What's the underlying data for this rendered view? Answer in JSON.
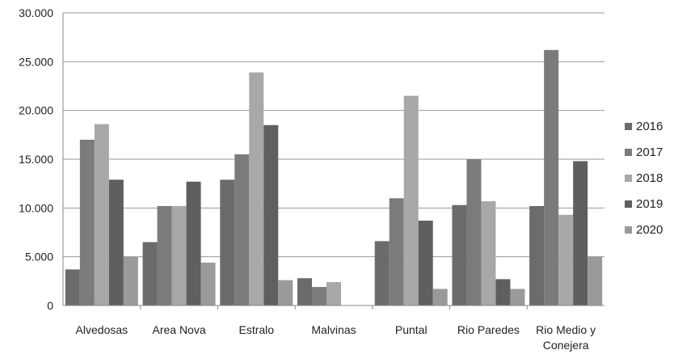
{
  "chart_data": {
    "type": "bar",
    "categories": [
      "Alvedosas",
      "Area Nova",
      "Estralo",
      "Malvinas",
      "Puntal",
      "Rio Paredes",
      "Rio Medio y Conejera"
    ],
    "series": [
      {
        "name": "2016",
        "values": [
          3700,
          6500,
          12900,
          2800,
          6600,
          10300,
          10200
        ]
      },
      {
        "name": "2017",
        "values": [
          17000,
          10200,
          15500,
          1900,
          11000,
          15000,
          26200
        ]
      },
      {
        "name": "2018",
        "values": [
          18600,
          10200,
          23900,
          2400,
          21500,
          10700,
          9300
        ]
      },
      {
        "name": "2019",
        "values": [
          12900,
          12700,
          18500,
          0,
          8700,
          2700,
          14800
        ]
      },
      {
        "name": "2020",
        "values": [
          5000,
          4400,
          2600,
          0,
          1700,
          1700,
          5000
        ]
      }
    ],
    "ylim": [
      0,
      30000
    ],
    "yticks": [
      "0",
      "5.000",
      "10.000",
      "15.000",
      "20.000",
      "25.000",
      "30.000"
    ],
    "ytick_values": [
      0,
      5000,
      10000,
      15000,
      20000,
      25000,
      30000
    ],
    "title": "",
    "xlabel": "",
    "ylabel": "",
    "grid": true,
    "legend_position": "right",
    "colors": [
      "#6b6b6b",
      "#7b7b7b",
      "#a8a8a8",
      "#5f5f5f",
      "#9a9a9a"
    ]
  }
}
